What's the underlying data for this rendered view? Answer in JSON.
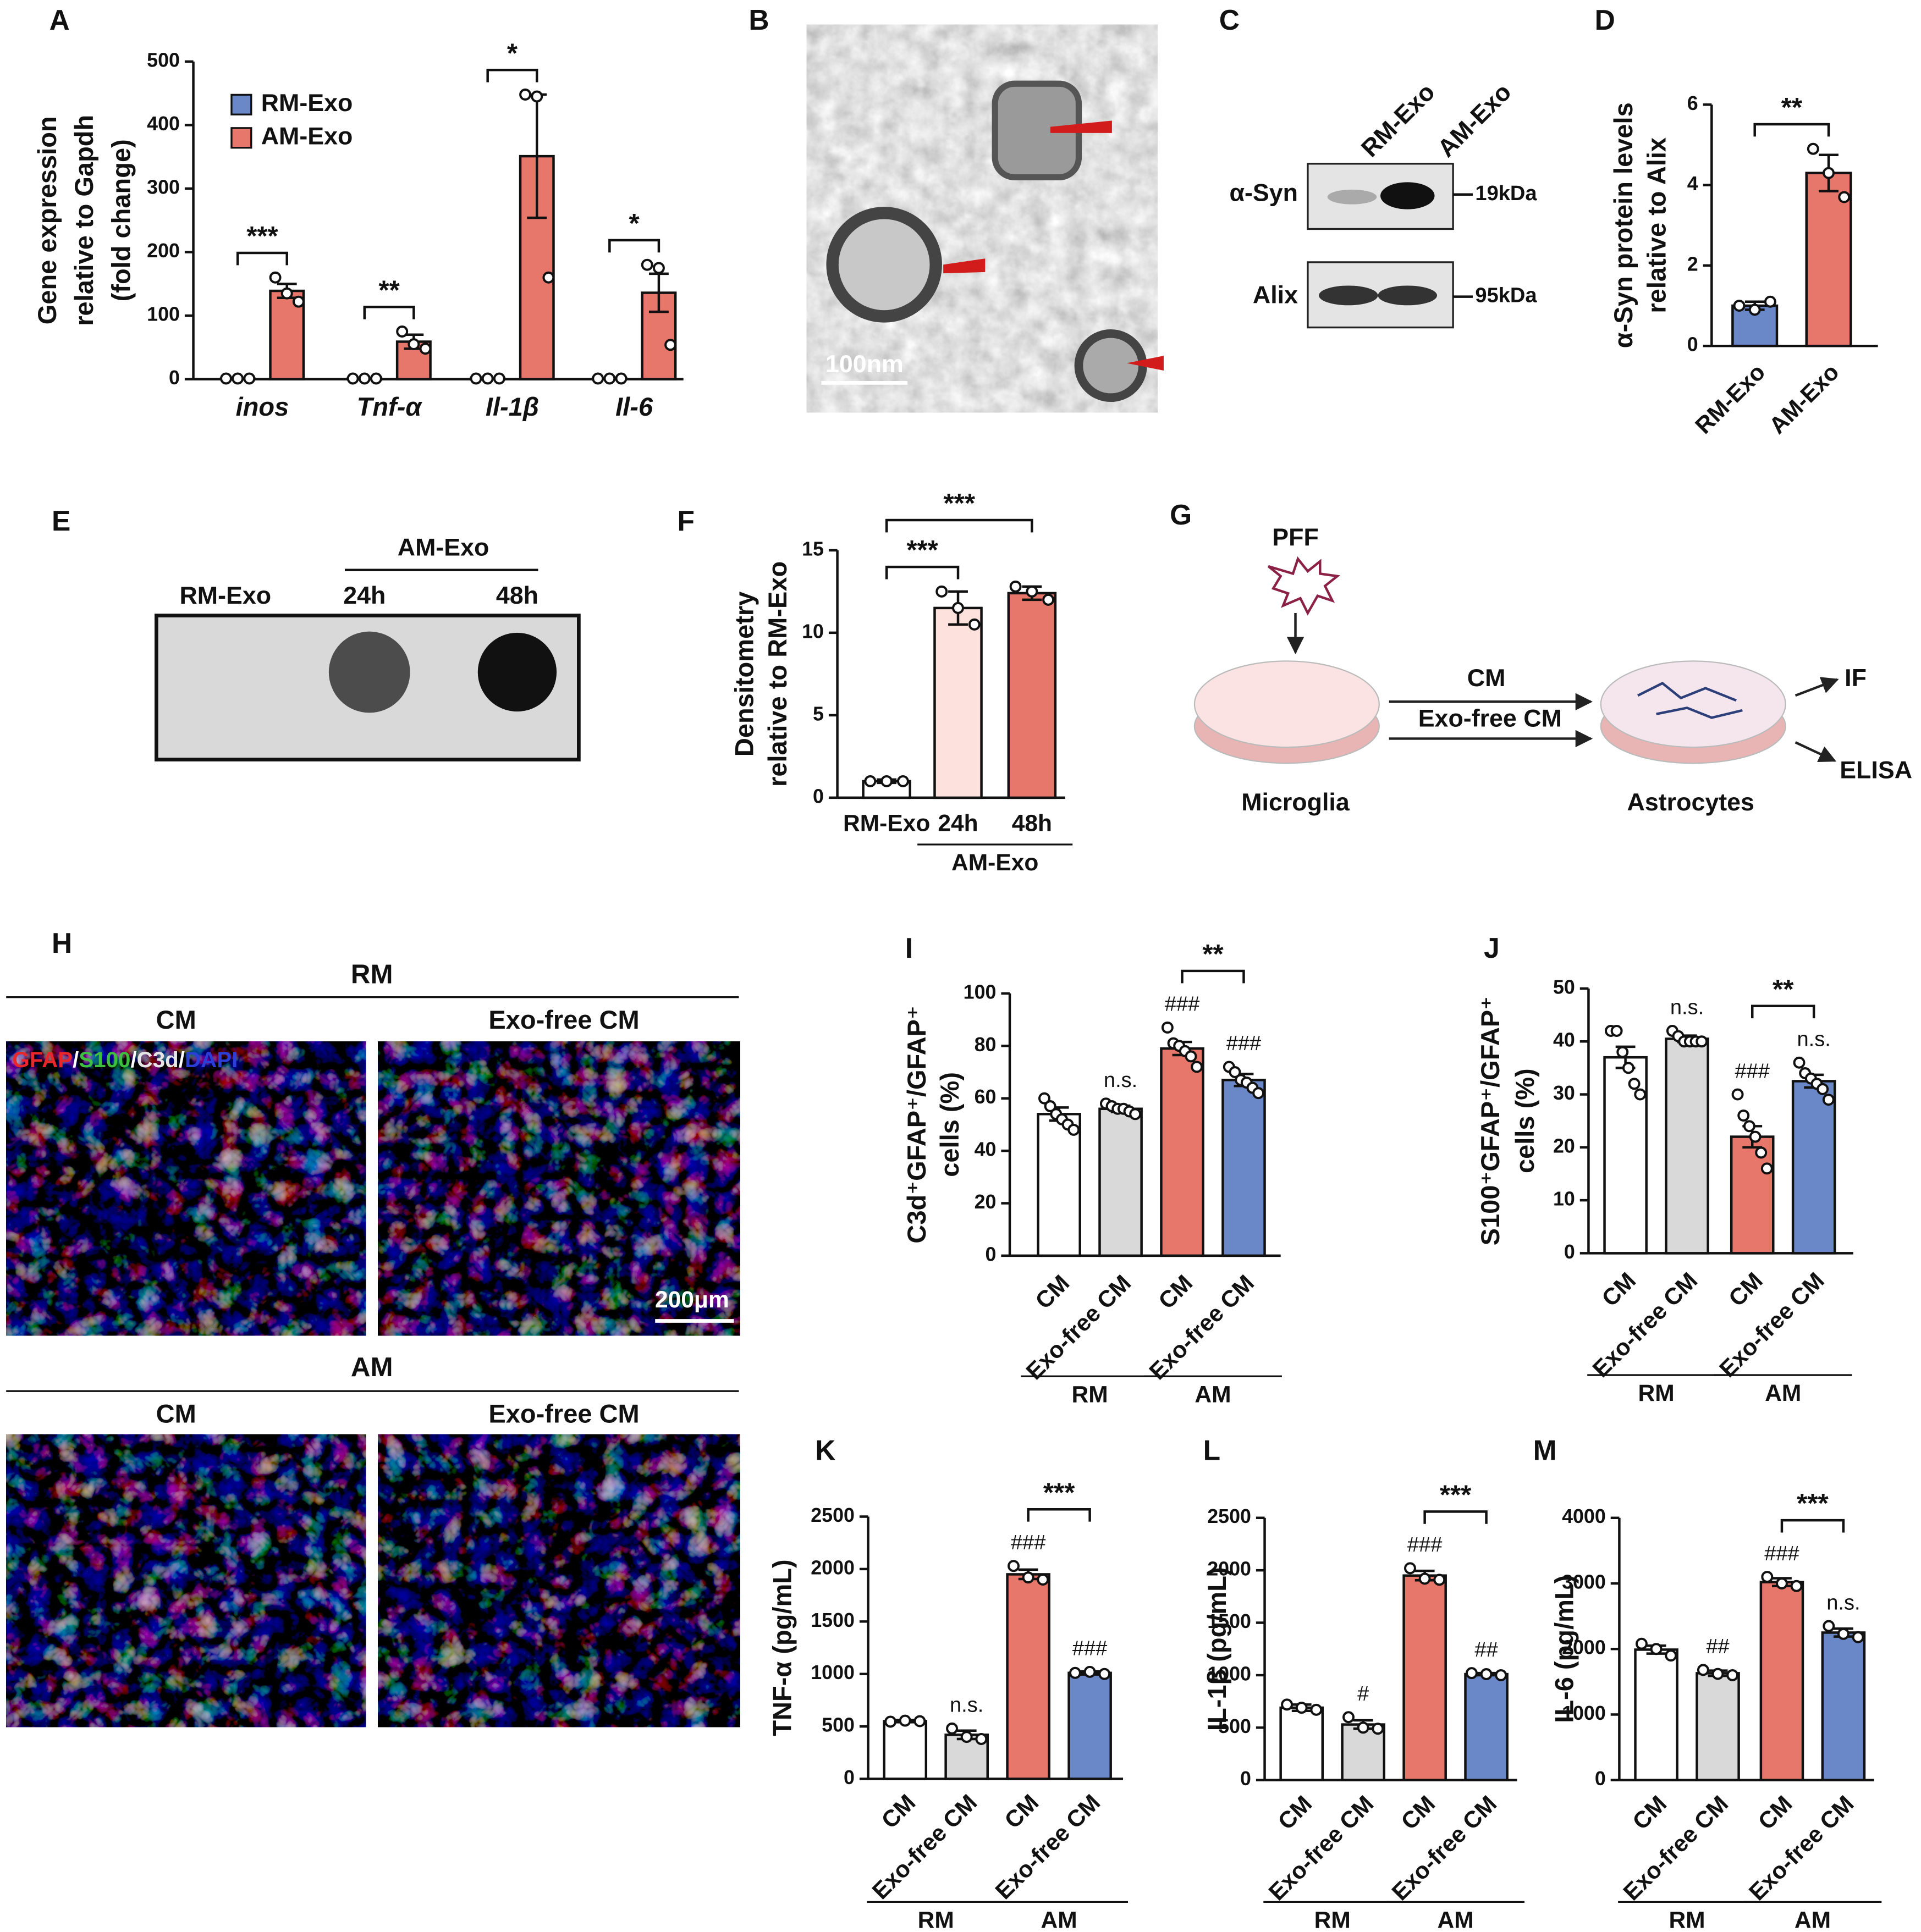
{
  "panel_labels": [
    "A",
    "B",
    "C",
    "D",
    "E",
    "F",
    "G",
    "H",
    "I",
    "J",
    "K",
    "L",
    "M"
  ],
  "chart_data": [
    {
      "type": "grouped_bar",
      "categories": [
        "inos",
        "Tnf-α",
        "Il-1β",
        "Il-6"
      ],
      "series": [
        {
          "name": "RM-Exo",
          "color": "#6a87c8",
          "values": [
            1,
            1,
            1,
            1
          ],
          "points": [
            [
              1,
              1,
              1
            ],
            [
              1,
              1,
              1
            ],
            [
              1,
              1,
              1
            ],
            [
              1,
              1,
              1
            ]
          ]
        },
        {
          "name": "AM-Exo",
          "color": "#e8776b",
          "values": [
            139,
            59,
            351,
            136
          ],
          "errors": [
            11,
            11,
            97,
            30
          ],
          "points": [
            [
              160,
              135,
              122
            ],
            [
              75,
              55,
              48
            ],
            [
              448,
              445,
              160
            ],
            [
              180,
              175,
              54
            ]
          ]
        }
      ],
      "significance": [
        "***",
        "**",
        "*",
        "*"
      ],
      "ylabel": [
        "Gene expression",
        "relative to Gapdh",
        "(fold change)"
      ],
      "ylim": [
        0,
        500
      ],
      "yticks": [
        0,
        100,
        200,
        300,
        400,
        500
      ]
    },
    {
      "type": "bar",
      "categories": [
        "RM-Exo",
        "AM-Exo"
      ],
      "values": [
        1.0,
        4.3
      ],
      "errors": [
        0.1,
        0.45
      ],
      "points": [
        [
          1.0,
          0.9,
          1.1
        ],
        [
          4.9,
          4.3,
          3.7
        ]
      ],
      "colors": [
        "#6a87c8",
        "#e8776b"
      ],
      "brackets": [
        {
          "label": "**",
          "bars": [
            0,
            1
          ]
        }
      ],
      "ylabel": [
        "α-Syn protein levels",
        "relative to Alix"
      ],
      "ylim": [
        0,
        6
      ],
      "yticks": [
        0,
        2,
        4,
        6
      ]
    },
    {
      "type": "bar",
      "categories": [
        "RM-Exo",
        "24h",
        "48h"
      ],
      "values": [
        1.0,
        11.5,
        12.4
      ],
      "errors": [
        0.1,
        1.0,
        0.4
      ],
      "points": [
        [
          1.0,
          1.0,
          1.0
        ],
        [
          12.5,
          11.5,
          10.5
        ],
        [
          12.8,
          12.5,
          12.0
        ]
      ],
      "colors": [
        "#ffffff",
        "#fde1dd",
        "#e8776b"
      ],
      "brackets": [
        {
          "label": "***",
          "bars": [
            0,
            1
          ]
        },
        {
          "label": "***",
          "bars": [
            0,
            2
          ]
        }
      ],
      "groups": [
        {
          "label": "AM-Exo",
          "bars": [
            1,
            2
          ]
        }
      ],
      "ylabel": [
        "Densitometry",
        "relative to RM-Exo"
      ],
      "ylim": [
        0,
        15
      ],
      "yticks": [
        0,
        5,
        10,
        15
      ]
    },
    {
      "type": "bar",
      "categories": [
        "CM",
        "Exo-free CM",
        "CM",
        "Exo-free CM"
      ],
      "values": [
        54,
        56,
        79,
        67
      ],
      "errors": [
        2.5,
        1.2,
        2.5,
        2.3
      ],
      "points": [
        [
          60,
          57,
          54,
          52,
          50,
          48
        ],
        [
          58,
          57,
          56,
          56,
          55,
          54
        ],
        [
          87,
          81,
          80,
          78,
          76,
          72
        ],
        [
          72,
          70,
          67,
          66,
          64,
          62
        ]
      ],
      "colors": [
        "#ffffff",
        "#d9d9d9",
        "#e8776b",
        "#6a87c8"
      ],
      "annotations": [
        null,
        "n.s.",
        "###",
        "###"
      ],
      "brackets": [
        {
          "label": "**",
          "bars": [
            2,
            3
          ]
        }
      ],
      "groups": [
        {
          "label": "RM",
          "bars": [
            0,
            1
          ]
        },
        {
          "label": "AM",
          "bars": [
            2,
            3
          ]
        }
      ],
      "ylabel": [
        "C3d⁺GFAP⁺/GFAP⁺",
        "cells (%)"
      ],
      "ylim": [
        0,
        100
      ],
      "yticks": [
        0,
        20,
        40,
        60,
        80,
        100
      ]
    },
    {
      "type": "bar",
      "categories": [
        "CM",
        "Exo-free CM",
        "CM",
        "Exo-free CM"
      ],
      "values": [
        37,
        40.5,
        22,
        32.5
      ],
      "errors": [
        2,
        0.6,
        2,
        1.2
      ],
      "points": [
        [
          42,
          42,
          38,
          35,
          32,
          30
        ],
        [
          42,
          41,
          40,
          40,
          40,
          40
        ],
        [
          30,
          26,
          24,
          22,
          19,
          16
        ],
        [
          36,
          34,
          33,
          32,
          31,
          29
        ]
      ],
      "colors": [
        "#ffffff",
        "#d9d9d9",
        "#e8776b",
        "#6a87c8"
      ],
      "annotations": [
        null,
        "n.s.",
        "###",
        "n.s."
      ],
      "brackets": [
        {
          "label": "**",
          "bars": [
            2,
            3
          ]
        }
      ],
      "groups": [
        {
          "label": "RM",
          "bars": [
            0,
            1
          ]
        },
        {
          "label": "AM",
          "bars": [
            2,
            3
          ]
        }
      ],
      "ylabel": [
        "S100⁺GFAP⁺/GFAP⁺",
        "cells (%)"
      ],
      "ylim": [
        0,
        50
      ],
      "yticks": [
        0,
        10,
        20,
        30,
        40,
        50
      ]
    },
    {
      "type": "bar",
      "categories": [
        "CM",
        "Exo-free CM",
        "CM",
        "Exo-free CM"
      ],
      "values": [
        550,
        420,
        1950,
        1010
      ],
      "errors": [
        10,
        40,
        45,
        15
      ],
      "points": [
        [
          545,
          555,
          550
        ],
        [
          480,
          400,
          380
        ],
        [
          2030,
          1920,
          1900
        ],
        [
          1010,
          1020,
          1000
        ]
      ],
      "colors": [
        "#ffffff",
        "#d9d9d9",
        "#e8776b",
        "#6a87c8"
      ],
      "annotations": [
        null,
        "n.s.",
        "###",
        "###"
      ],
      "brackets": [
        {
          "label": "***",
          "bars": [
            2,
            3
          ]
        }
      ],
      "groups": [
        {
          "label": "RM",
          "bars": [
            0,
            1
          ]
        },
        {
          "label": "AM",
          "bars": [
            2,
            3
          ]
        }
      ],
      "ylabel": [
        "TNF-α (pg/mL)"
      ],
      "ylim": [
        0,
        2500
      ],
      "yticks": [
        0,
        500,
        1000,
        1500,
        2000,
        2500
      ]
    },
    {
      "type": "bar",
      "categories": [
        "CM",
        "Exo-free CM",
        "CM",
        "Exo-free CM"
      ],
      "values": [
        690,
        530,
        1950,
        1010
      ],
      "errors": [
        30,
        40,
        45,
        10
      ],
      "points": [
        [
          720,
          690,
          670
        ],
        [
          600,
          500,
          490
        ],
        [
          2020,
          1920,
          1910
        ],
        [
          1020,
          1010,
          1000
        ]
      ],
      "colors": [
        "#ffffff",
        "#d9d9d9",
        "#e8776b",
        "#6a87c8"
      ],
      "annotations": [
        null,
        "#",
        "###",
        "##"
      ],
      "brackets": [
        {
          "label": "***",
          "bars": [
            2,
            3
          ]
        }
      ],
      "groups": [
        {
          "label": "RM",
          "bars": [
            0,
            1
          ]
        },
        {
          "label": "AM",
          "bars": [
            2,
            3
          ]
        }
      ],
      "ylabel": [
        "IL-1β (pg/mL)"
      ],
      "ylim": [
        0,
        2500
      ],
      "yticks": [
        0,
        500,
        1000,
        1500,
        2000,
        2500
      ]
    },
    {
      "type": "bar",
      "categories": [
        "CM",
        "Exo-free CM",
        "CM",
        "Exo-free CM"
      ],
      "values": [
        1990,
        1630,
        3020,
        2250
      ],
      "errors": [
        60,
        40,
        60,
        60
      ],
      "points": [
        [
          2080,
          2000,
          1900
        ],
        [
          1680,
          1620,
          1600
        ],
        [
          3100,
          3000,
          2960
        ],
        [
          2350,
          2230,
          2180
        ]
      ],
      "colors": [
        "#ffffff",
        "#d9d9d9",
        "#e8776b",
        "#6a87c8"
      ],
      "annotations": [
        null,
        "##",
        "###",
        "n.s."
      ],
      "brackets": [
        {
          "label": "***",
          "bars": [
            2,
            3
          ]
        }
      ],
      "groups": [
        {
          "label": "RM",
          "bars": [
            0,
            1
          ]
        },
        {
          "label": "AM",
          "bars": [
            2,
            3
          ]
        }
      ],
      "ylabel": [
        "IL-6 (pg/mL)"
      ],
      "ylim": [
        0,
        4000
      ],
      "yticks": [
        0,
        1000,
        2000,
        3000,
        4000
      ]
    }
  ],
  "panel_b": {
    "scale_bar": "100nm"
  },
  "panel_c": {
    "lanes": [
      "RM-Exo",
      "AM-Exo"
    ],
    "rows": [
      {
        "label": "α-Syn",
        "size": "19kDa"
      },
      {
        "label": "Alix",
        "size": "95kDa"
      }
    ]
  },
  "panel_e": {
    "lane": "RM-Exo",
    "group": "AM-Exo",
    "group_lanes": [
      "24h",
      "48h"
    ]
  },
  "panel_g": {
    "stimulus": "PFF",
    "source": "Microglia",
    "target": "Astrocytes",
    "treatments": [
      "CM",
      "Exo-free CM"
    ],
    "readouts": [
      "IF",
      "ELISA"
    ]
  },
  "panel_h": {
    "rows": [
      {
        "label": "RM",
        "columns": [
          "CM",
          "Exo-free CM"
        ]
      },
      {
        "label": "AM",
        "columns": [
          "CM",
          "Exo-free CM"
        ]
      }
    ],
    "stains": [
      "GFAP",
      "S100",
      "C3d",
      "DAPI"
    ],
    "separator": "/",
    "scale_bar": "200μm"
  }
}
